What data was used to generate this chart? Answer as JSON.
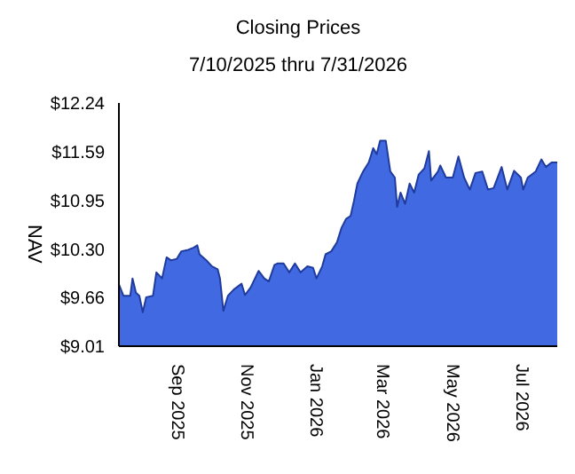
{
  "chart_data": {
    "type": "area",
    "title": "Closing Prices",
    "subtitle": "7/10/2025 thru 7/31/2026",
    "ylabel": "NAV",
    "x": [
      "2025-07-10",
      "2025-07-14",
      "2025-07-20",
      "2025-07-22",
      "2025-07-25",
      "2025-07-28",
      "2025-07-31",
      "2025-08-03",
      "2025-08-09",
      "2025-08-12",
      "2025-08-17",
      "2025-08-21",
      "2025-08-25",
      "2025-08-30",
      "2025-09-03",
      "2025-09-09",
      "2025-09-14",
      "2025-09-17",
      "2025-09-19",
      "2025-09-25",
      "2025-09-30",
      "2025-10-05",
      "2025-10-07",
      "2025-10-10",
      "2025-10-14",
      "2025-10-19",
      "2025-10-26",
      "2025-10-29",
      "2025-11-03",
      "2025-11-10",
      "2025-11-15",
      "2025-11-19",
      "2025-11-24",
      "2025-11-27",
      "2025-12-02",
      "2025-12-07",
      "2025-12-12",
      "2025-12-17",
      "2025-12-23",
      "2025-12-28",
      "2025-12-31",
      "2026-01-05",
      "2026-01-08",
      "2026-01-13",
      "2026-01-18",
      "2026-01-22",
      "2026-01-26",
      "2026-01-30",
      "2026-02-02",
      "2026-02-05",
      "2026-02-10",
      "2026-02-15",
      "2026-02-19",
      "2026-02-22",
      "2026-02-25",
      "2026-03-02",
      "2026-03-06",
      "2026-03-10",
      "2026-03-12",
      "2026-03-15",
      "2026-03-19",
      "2026-03-23",
      "2026-03-27",
      "2026-03-31",
      "2026-04-05",
      "2026-04-09",
      "2026-04-11",
      "2026-04-17",
      "2026-04-19",
      "2026-04-24",
      "2026-04-30",
      "2026-05-05",
      "2026-05-10",
      "2026-05-15",
      "2026-05-20",
      "2026-05-26",
      "2026-05-31",
      "2026-06-05",
      "2026-06-12",
      "2026-06-17",
      "2026-06-23",
      "2026-06-29",
      "2026-07-01",
      "2026-07-05",
      "2026-07-12",
      "2026-07-17",
      "2026-07-21",
      "2026-07-26",
      "2026-07-31"
    ],
    "series": [
      {
        "color": "#4169e1",
        "values": [
          9.83,
          9.68,
          9.68,
          9.91,
          9.72,
          9.68,
          9.46,
          9.66,
          9.68,
          9.99,
          9.91,
          10.19,
          10.15,
          10.17,
          10.27,
          10.29,
          10.32,
          10.35,
          10.23,
          10.15,
          10.07,
          10.03,
          9.91,
          9.48,
          9.68,
          9.76,
          9.84,
          9.69,
          9.79,
          10.01,
          9.91,
          9.87,
          10.09,
          10.11,
          10.11,
          9.99,
          10.11,
          9.99,
          10.07,
          10.05,
          9.91,
          10.07,
          10.23,
          10.27,
          10.39,
          10.58,
          10.7,
          10.74,
          10.94,
          11.17,
          11.33,
          11.45,
          11.64,
          11.56,
          11.74,
          11.74,
          11.33,
          11.25,
          10.86,
          11.05,
          10.9,
          11.17,
          11.05,
          11.29,
          11.37,
          11.6,
          11.21,
          11.33,
          11.41,
          11.25,
          11.25,
          11.53,
          11.25,
          11.09,
          11.31,
          11.33,
          11.09,
          11.11,
          11.39,
          11.09,
          11.34,
          11.25,
          11.09,
          11.25,
          11.33,
          11.49,
          11.39,
          11.45,
          11.45
        ]
      }
    ],
    "xlim": [
      "2025-07-10",
      "2026-07-31"
    ],
    "xticks": [
      {
        "value": "2025-09-01",
        "label": "Sep 2025"
      },
      {
        "value": "2025-11-01",
        "label": "Nov 2025"
      },
      {
        "value": "2026-01-01",
        "label": "Jan 2026"
      },
      {
        "value": "2026-03-01",
        "label": "Mar 2026"
      },
      {
        "value": "2026-05-01",
        "label": "May 2026"
      },
      {
        "value": "2026-07-01",
        "label": "Jul 2026"
      }
    ],
    "ylim": [
      9.01,
      12.24
    ],
    "yticks": [
      {
        "value": 9.01,
        "label": "$9.01"
      },
      {
        "value": 9.66,
        "label": "$9.66"
      },
      {
        "value": 10.3,
        "label": "$10.30"
      },
      {
        "value": 10.95,
        "label": "$10.95"
      },
      {
        "value": 11.59,
        "label": "$11.59"
      },
      {
        "value": 12.24,
        "label": "$12.24"
      }
    ],
    "grid": false,
    "legend": false
  }
}
